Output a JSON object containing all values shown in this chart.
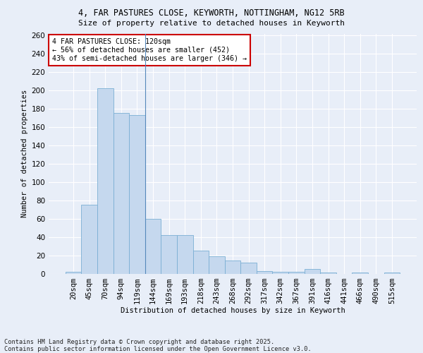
{
  "title_line1": "4, FAR PASTURES CLOSE, KEYWORTH, NOTTINGHAM, NG12 5RB",
  "title_line2": "Size of property relative to detached houses in Keyworth",
  "xlabel": "Distribution of detached houses by size in Keyworth",
  "ylabel": "Number of detached properties",
  "bar_labels": [
    "20sqm",
    "45sqm",
    "70sqm",
    "94sqm",
    "119sqm",
    "144sqm",
    "169sqm",
    "193sqm",
    "218sqm",
    "243sqm",
    "268sqm",
    "292sqm",
    "317sqm",
    "342sqm",
    "367sqm",
    "391sqm",
    "416sqm",
    "441sqm",
    "466sqm",
    "490sqm",
    "515sqm"
  ],
  "bar_values": [
    2,
    75,
    202,
    175,
    173,
    60,
    42,
    42,
    25,
    19,
    14,
    12,
    3,
    2,
    2,
    5,
    1,
    0,
    1,
    0,
    1
  ],
  "bar_color": "#c5d8ee",
  "bar_edge_color": "#7aafd4",
  "vline_x": 4.5,
  "vline_color": "#5588bb",
  "background_color": "#e8eef8",
  "grid_color": "#ffffff",
  "annotation_text": "4 FAR PASTURES CLOSE: 120sqm\n← 56% of detached houses are smaller (452)\n43% of semi-detached houses are larger (346) →",
  "annotation_box_facecolor": "#ffffff",
  "annotation_box_edgecolor": "#cc0000",
  "footer_line1": "Contains HM Land Registry data © Crown copyright and database right 2025.",
  "footer_line2": "Contains public sector information licensed under the Open Government Licence v3.0.",
  "ylim_max": 262,
  "yticks": [
    0,
    20,
    40,
    60,
    80,
    100,
    120,
    140,
    160,
    180,
    200,
    220,
    240,
    260
  ]
}
